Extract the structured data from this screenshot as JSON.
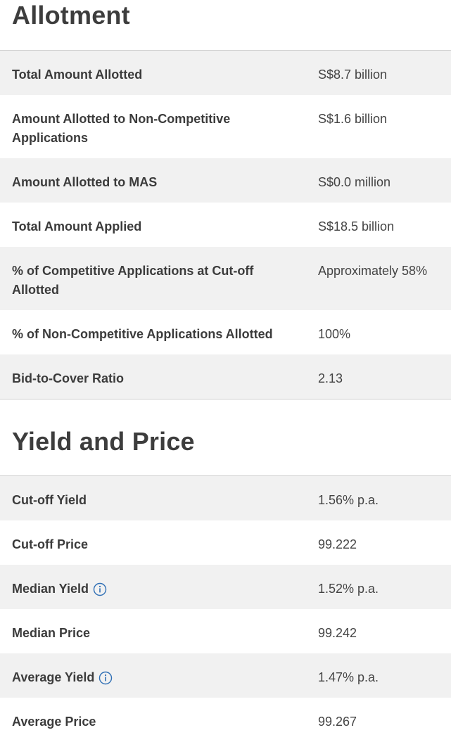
{
  "allotment": {
    "title": "Allotment",
    "rows": [
      {
        "label": "Total Amount Allotted",
        "value": "S$8.7 billion"
      },
      {
        "label": "Amount Allotted to Non-Competitive Applications",
        "value": "S$1.6 billion"
      },
      {
        "label": "Amount Allotted to MAS",
        "value": "S$0.0 million"
      },
      {
        "label": "Total Amount Applied",
        "value": "S$18.5 billion"
      },
      {
        "label": "% of Competitive Applications at Cut-off Allotted",
        "value": "Approximately 58%"
      },
      {
        "label": "% of Non-Competitive Applications Allotted",
        "value": "100%"
      },
      {
        "label": "Bid-to-Cover Ratio",
        "value": "2.13"
      }
    ]
  },
  "yield_price": {
    "title": "Yield and Price",
    "rows": [
      {
        "label": "Cut-off Yield",
        "value": "1.56% p.a."
      },
      {
        "label": "Cut-off Price",
        "value": "99.222"
      },
      {
        "label": "Median Yield",
        "value": "1.52% p.a.",
        "icon": "info-icon"
      },
      {
        "label": "Median Price",
        "value": "99.242"
      },
      {
        "label": "Average Yield",
        "value": "1.47% p.a.",
        "icon": "info-icon"
      },
      {
        "label": "Average Price",
        "value": "99.267"
      }
    ]
  },
  "colors": {
    "row_shade": "#f1f1f1",
    "icon": "#2f6fb5",
    "rule": "#cfcfcf"
  }
}
